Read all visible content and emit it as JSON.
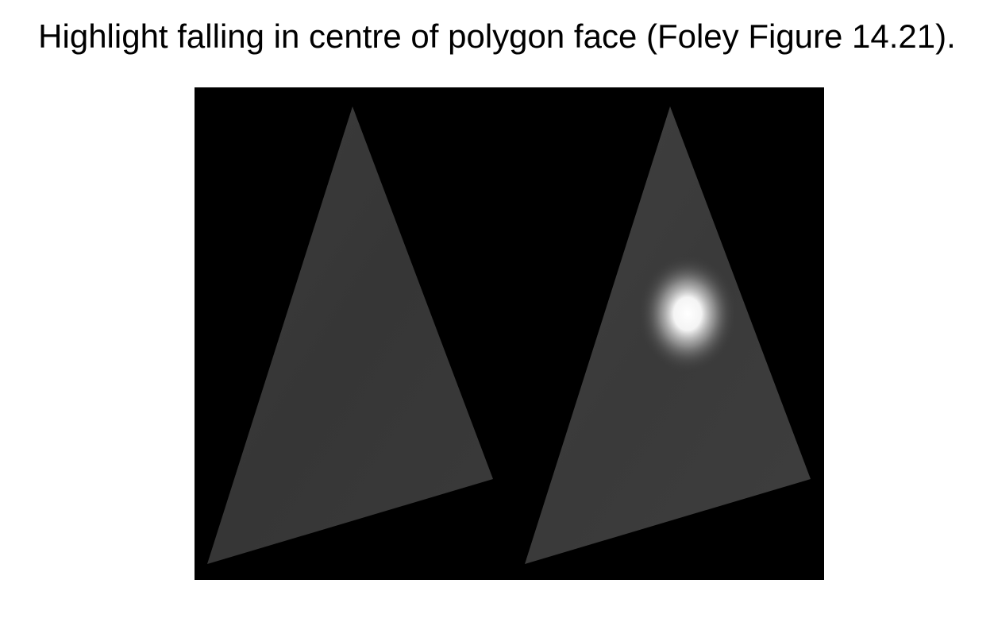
{
  "slide": {
    "caption": "Highlight falling in centre of polygon face (Foley Figure 14.21)."
  },
  "figure": {
    "background_color": "#000000",
    "panels": [
      {
        "shading": "flat",
        "face_color": "#383838"
      },
      {
        "shading": "specular-highlight",
        "face_color": "#3c3c3c",
        "highlight_color": "#ffffff"
      }
    ]
  }
}
